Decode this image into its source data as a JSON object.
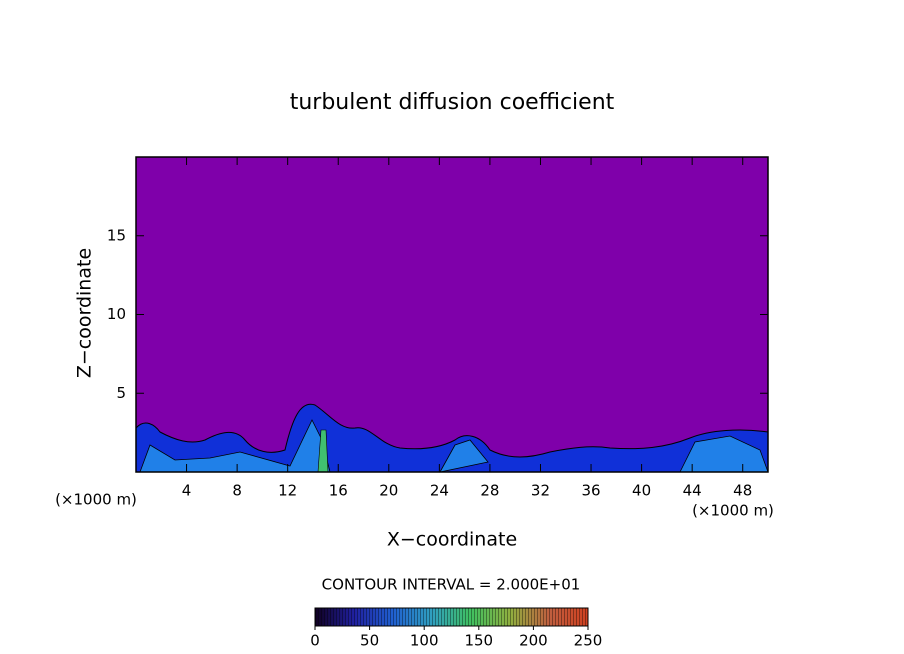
{
  "chart_data": {
    "type": "contour",
    "title": "turbulent diffusion coefficient",
    "x_label": "X−coordinate",
    "y_label": "Z−coordinate",
    "x_unit": "(×1000 m)",
    "y_unit": "(×1000 m)",
    "xlim": [
      0,
      50
    ],
    "xticks": [
      4,
      8,
      12,
      16,
      20,
      24,
      28,
      32,
      36,
      40,
      44,
      48
    ],
    "ylim": [
      0,
      20
    ],
    "yticks": [
      5,
      10,
      15
    ],
    "background_color": "#7f00aa",
    "contour_interval_text": "CONTOUR INTERVAL = 2.000E+01",
    "colorbar": {
      "lim": [
        0,
        250
      ],
      "ticks": [
        0,
        50,
        100,
        150,
        200,
        250
      ],
      "colors": [
        "#100020",
        "#2020a0",
        "#2060d0",
        "#30a0c0",
        "#40c060",
        "#90b040",
        "#c06040",
        "#d04020"
      ]
    }
  }
}
